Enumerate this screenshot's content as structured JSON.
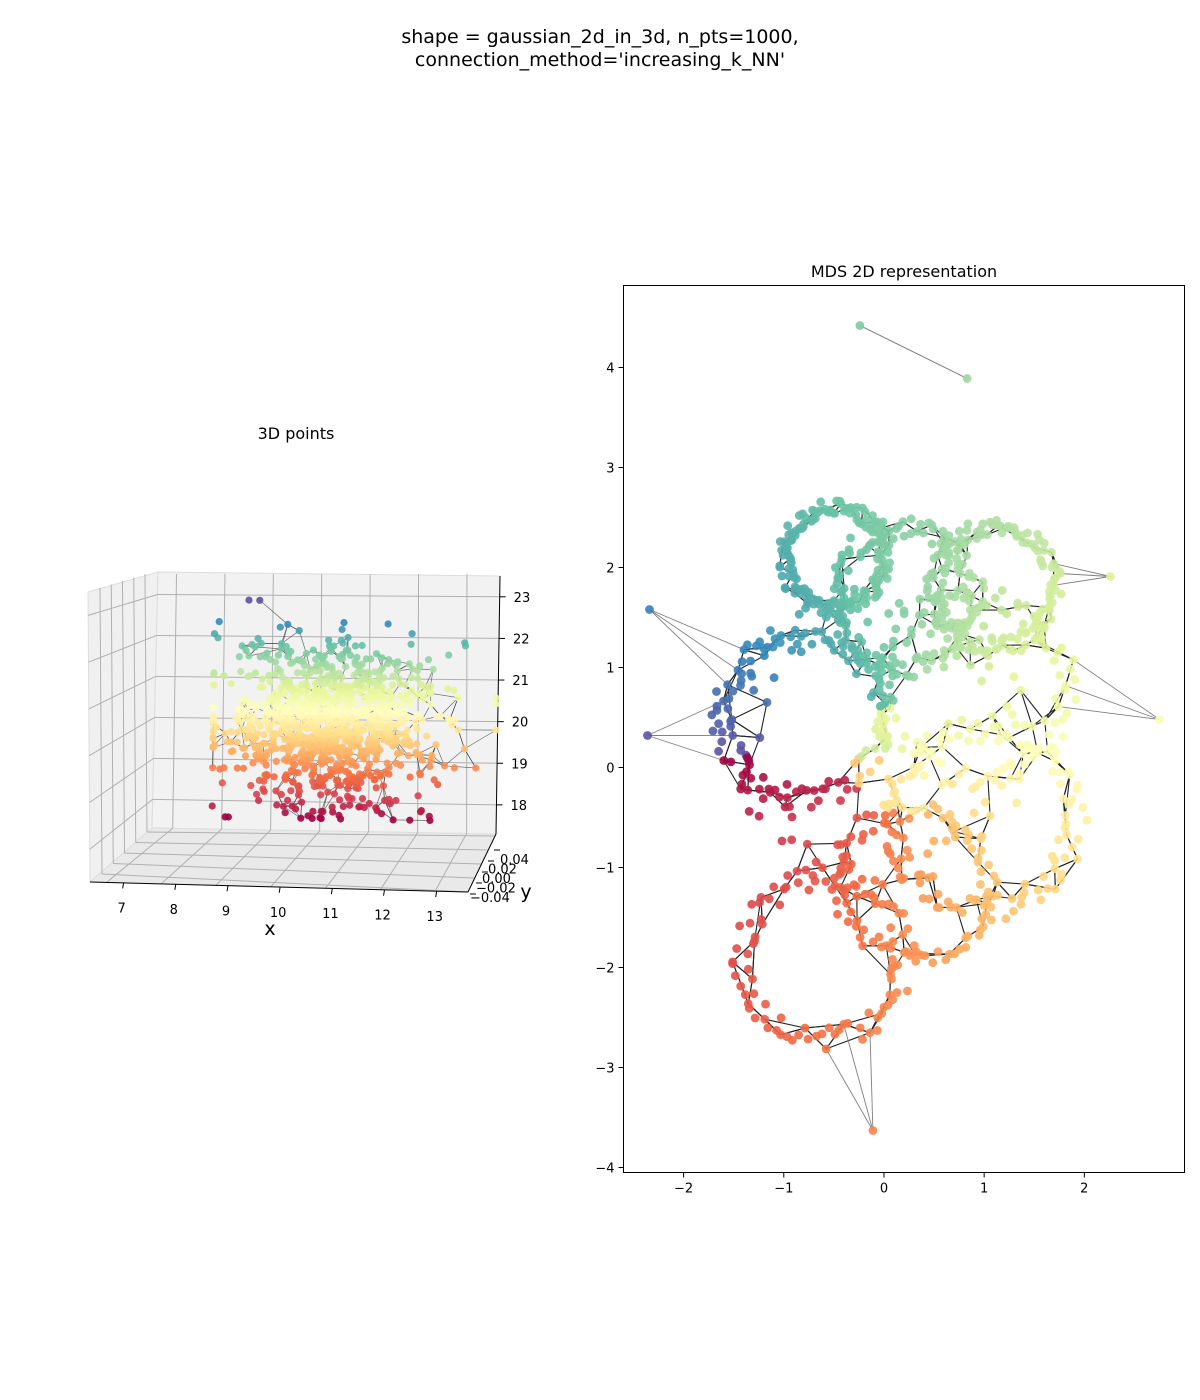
{
  "figure": {
    "title_line1": "shape = gaussian_2d_in_3d, n_pts=1000,",
    "title_line2": "connection_method='increasing_k_NN'"
  },
  "chart_data": [
    {
      "type": "scatter",
      "projection": "3d",
      "title": "3D points",
      "xlabel": "x",
      "ylabel": "y",
      "zlabel": "",
      "x_ticks": [
        "7",
        "8",
        "9",
        "10",
        "11",
        "12",
        "13"
      ],
      "y_ticks": [
        "0.04",
        "0.02",
        "0.00",
        "−0.02",
        "−0.04"
      ],
      "z_ticks": [
        "23",
        "22",
        "21",
        "20",
        "19",
        "18"
      ],
      "xlim": [
        6.7,
        13.6
      ],
      "ylim": [
        -0.05,
        0.05
      ],
      "zlim": [
        17.3,
        23.5
      ],
      "grid": true,
      "colormap": "Spectral",
      "color_by": "z",
      "n_points": 1000,
      "distribution": {
        "x_center": 10.2,
        "z_center": 19.9,
        "x_spread": 1.1,
        "z_spread": 1.0
      },
      "edges": "k-nearest-neighbour graph"
    },
    {
      "type": "scatter",
      "title": "MDS 2D representation",
      "xlabel": "",
      "ylabel": "",
      "x_ticks": [
        "−2",
        "−1",
        "0",
        "1",
        "2"
      ],
      "y_ticks": [
        "4",
        "3",
        "2",
        "1",
        "0",
        "−1",
        "−2",
        "−3",
        "−4"
      ],
      "xlim": [
        -2.6,
        3.0
      ],
      "ylim": [
        -4.05,
        4.82
      ],
      "grid": false,
      "colormap": "Spectral",
      "n_points": 1000,
      "outliers": [
        [
          -0.24,
          4.42
        ],
        [
          0.83,
          3.89
        ],
        [
          2.75,
          0.48
        ],
        [
          -2.36,
          0.32
        ],
        [
          -2.34,
          1.58
        ],
        [
          -0.11,
          -3.63
        ],
        [
          2.26,
          1.91
        ]
      ],
      "edges": "k-nearest-neighbour graph"
    }
  ]
}
